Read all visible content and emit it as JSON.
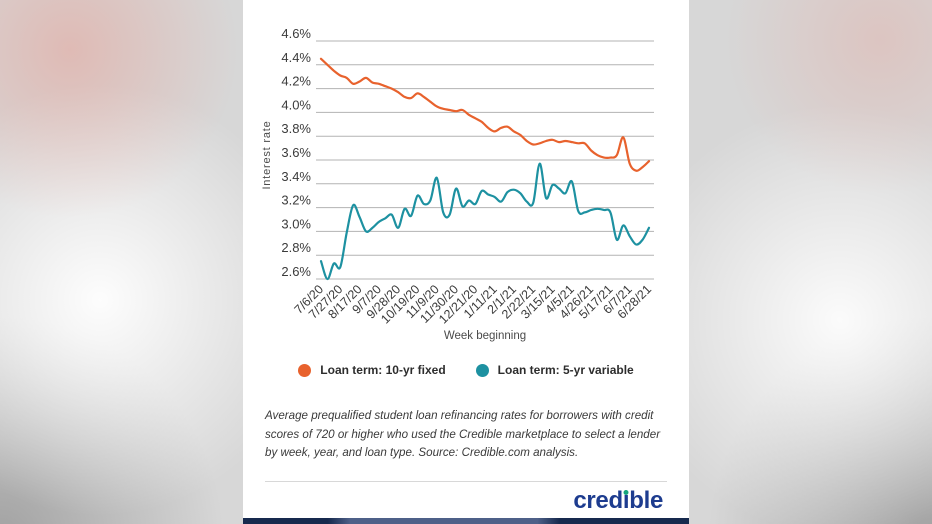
{
  "chart_data": {
    "type": "line",
    "title": "",
    "xlabel": "Week beginning",
    "ylabel": "Interest rate",
    "grid": "horizontal",
    "legend_position": "bottom",
    "ylim": [
      2.6,
      4.6
    ],
    "y_ticks": [
      "4.6%",
      "4.4%",
      "4.2%",
      "4.0%",
      "3.8%",
      "3.6%",
      "3.4%",
      "3.2%",
      "3.0%",
      "2.8%",
      "2.6%"
    ],
    "y_tick_values": [
      4.6,
      4.4,
      4.2,
      4.0,
      3.8,
      3.6,
      3.4,
      3.2,
      3.0,
      2.8,
      2.6
    ],
    "x_tick_labels": [
      "7/6/20",
      "7/27/20",
      "8/17/20",
      "9/7/20",
      "9/28/20",
      "10/19/20",
      "11/9/20",
      "11/30/20",
      "12/21/20",
      "1/11/21",
      "2/1/21",
      "2/22/21",
      "3/15/21",
      "4/5/21",
      "4/26/21",
      "5/17/21",
      "6/7/21",
      "6/28/21"
    ],
    "x_tick_week_indices": [
      0,
      3,
      6,
      9,
      12,
      15,
      18,
      21,
      24,
      27,
      30,
      33,
      36,
      39,
      42,
      45,
      48,
      51
    ],
    "weeks_total": 52,
    "series": [
      {
        "name": "Loan term: 10-yr fixed",
        "color": "#e8622d",
        "values": [
          4.45,
          4.4,
          4.35,
          4.31,
          4.29,
          4.24,
          4.26,
          4.29,
          4.25,
          4.24,
          4.22,
          4.2,
          4.17,
          4.13,
          4.12,
          4.16,
          4.13,
          4.09,
          4.05,
          4.03,
          4.02,
          4.01,
          4.02,
          3.98,
          3.95,
          3.92,
          3.87,
          3.84,
          3.87,
          3.88,
          3.84,
          3.81,
          3.76,
          3.73,
          3.74,
          3.76,
          3.77,
          3.75,
          3.76,
          3.75,
          3.74,
          3.74,
          3.68,
          3.64,
          3.62,
          3.62,
          3.64,
          3.79,
          3.57,
          3.51,
          3.54,
          3.59
        ]
      },
      {
        "name": "Loan term: 5-yr variable",
        "color": "#1d91a1",
        "values": [
          2.75,
          2.6,
          2.73,
          2.7,
          2.99,
          3.22,
          3.12,
          3.0,
          3.03,
          3.08,
          3.11,
          3.14,
          3.03,
          3.19,
          3.13,
          3.3,
          3.23,
          3.26,
          3.45,
          3.16,
          3.14,
          3.36,
          3.21,
          3.26,
          3.23,
          3.34,
          3.31,
          3.29,
          3.25,
          3.33,
          3.35,
          3.32,
          3.25,
          3.24,
          3.57,
          3.28,
          3.39,
          3.36,
          3.32,
          3.42,
          3.17,
          3.16,
          3.18,
          3.19,
          3.18,
          3.16,
          2.93,
          3.05,
          2.96,
          2.89,
          2.93,
          3.03
        ]
      }
    ],
    "grid_color": "#b3b3b3",
    "tick_text_color": "#3b3b3b",
    "axis_title_color": "#4a4a4a"
  },
  "legend": {
    "items": [
      {
        "label": "Loan term: 10-yr fixed",
        "color": "#e8622d"
      },
      {
        "label": "Loan term: 5-yr variable",
        "color": "#1d91a1"
      }
    ]
  },
  "caption": "Average prequalified student loan refinancing rates for borrowers with credit scores of 720 or higher who used the Credible marketplace to select a lender by week, year, and loan type. Source: Credible.com analysis.",
  "logo": {
    "full_text": "credible",
    "part_before": "cred",
    "dotless_i": "ı",
    "part_after": "ble",
    "wordmark_color": "#1d3c8f",
    "dot_color": "#14a57b"
  }
}
